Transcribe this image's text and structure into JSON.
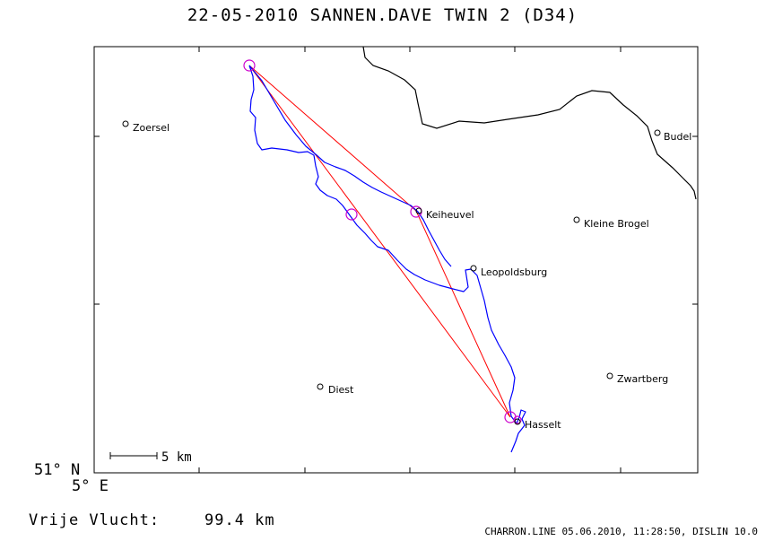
{
  "title": "22-05-2010    SANNEN.DAVE    TWIN 2 (D34)",
  "lat_label": "51° N",
  "lon_label": "5° E",
  "scale_bar": {
    "label": "5 km"
  },
  "flight": {
    "label": "Vrije Vlucht:",
    "distance": "99.4 km"
  },
  "footer": "CHARRON.LINE 05.06.2010, 11:28:50, DISLIN 10.0",
  "colors": {
    "track": "#0000ff",
    "task_line": "#ff0000",
    "turnpoint": "#cc00cc",
    "border": "#000000"
  },
  "places": [
    {
      "name": "Zoersel"
    },
    {
      "name": "Budel"
    },
    {
      "name": "Keiheuvel"
    },
    {
      "name": "Kleine Brogel"
    },
    {
      "name": "Leopoldsburg"
    },
    {
      "name": "Diest"
    },
    {
      "name": "Zwartberg"
    },
    {
      "name": "Hasselt"
    }
  ]
}
